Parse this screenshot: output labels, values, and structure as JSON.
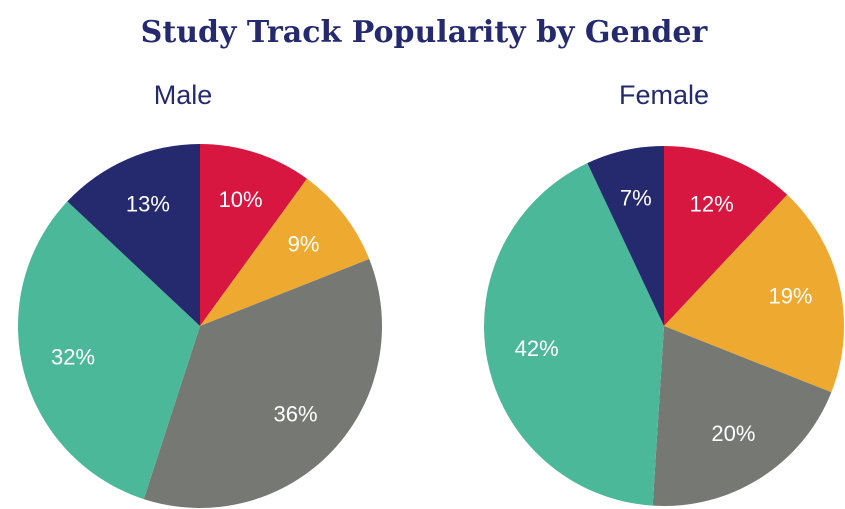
{
  "title": "Study Track Popularity by Gender",
  "chart_data": [
    {
      "type": "pie",
      "title": "Male",
      "values": [
        10,
        9,
        36,
        32,
        13
      ],
      "value_labels": [
        "10%",
        "9%",
        "36%",
        "32%",
        "13%"
      ],
      "colors": [
        "#d7173f",
        "#eeaa30",
        "#767873",
        "#4cb89a",
        "#252a6e"
      ]
    },
    {
      "type": "pie",
      "title": "Female",
      "values": [
        12,
        19,
        20,
        42,
        7
      ],
      "value_labels": [
        "12%",
        "19%",
        "20%",
        "42%",
        "7%"
      ],
      "colors": [
        "#d7173f",
        "#eeaa30",
        "#767873",
        "#4cb89a",
        "#252a6e"
      ]
    }
  ]
}
